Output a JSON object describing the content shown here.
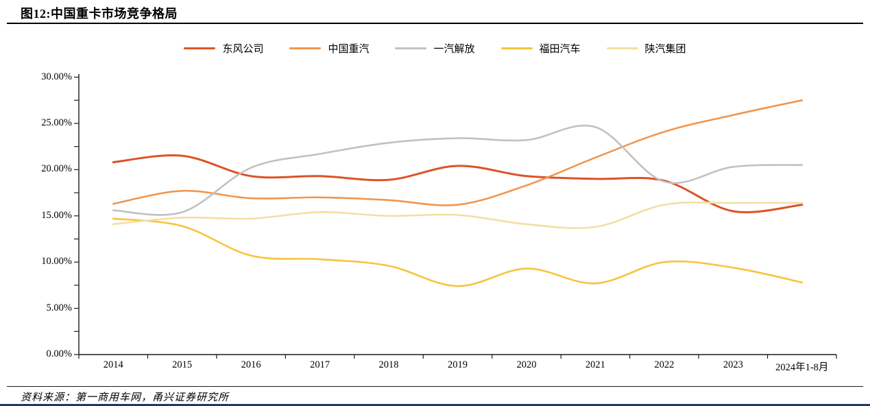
{
  "figure": {
    "title": "图12:中国重卡市场竞争格局",
    "source": "资料来源：第一商用车网，甬兴证券研究所",
    "accent_bar_color": "#1F3864",
    "axis_color": "#1a1a1a"
  },
  "chart_data": {
    "type": "line",
    "title": "图12:中国重卡市场竞争格局",
    "xlabel": "",
    "ylabel": "",
    "ylim": [
      0,
      30
    ],
    "ytick_step": 5,
    "ytick_minor_step": 2.5,
    "grid": "off",
    "legend_position": "top",
    "yticks": [
      "30.00%",
      "25.00%",
      "20.00%",
      "15.00%",
      "10.00%",
      "5.00%",
      "0.00%"
    ],
    "ytick_values": [
      30,
      25,
      20,
      15,
      10,
      5,
      0
    ],
    "categories": [
      "2014",
      "2015",
      "2016",
      "2017",
      "2018",
      "2019",
      "2020",
      "2021",
      "2022",
      "2023",
      "2024年1-8月"
    ],
    "series": [
      {
        "name": "东风公司",
        "color": "#DC5228",
        "values": [
          20.8,
          21.5,
          19.3,
          19.3,
          18.9,
          20.4,
          19.3,
          19.0,
          18.8,
          15.5,
          16.2
        ]
      },
      {
        "name": "中国重汽",
        "color": "#F0964F",
        "values": [
          16.3,
          17.7,
          16.9,
          17.0,
          16.7,
          16.2,
          18.3,
          21.3,
          24.1,
          25.9,
          27.5
        ]
      },
      {
        "name": "一汽解放",
        "color": "#C1C1C1",
        "values": [
          15.6,
          15.4,
          20.2,
          21.7,
          22.9,
          23.4,
          23.2,
          24.6,
          18.7,
          20.3,
          20.5
        ]
      },
      {
        "name": "福田汽车",
        "color": "#F8C33C",
        "values": [
          14.7,
          13.9,
          10.7,
          10.3,
          9.6,
          7.4,
          9.3,
          7.7,
          10.0,
          9.4,
          7.8
        ]
      },
      {
        "name": "陕汽集团",
        "color": "#F3DFA2",
        "values": [
          14.1,
          14.8,
          14.7,
          15.4,
          15.0,
          15.1,
          14.1,
          13.8,
          16.2,
          16.4,
          16.4
        ]
      }
    ]
  }
}
